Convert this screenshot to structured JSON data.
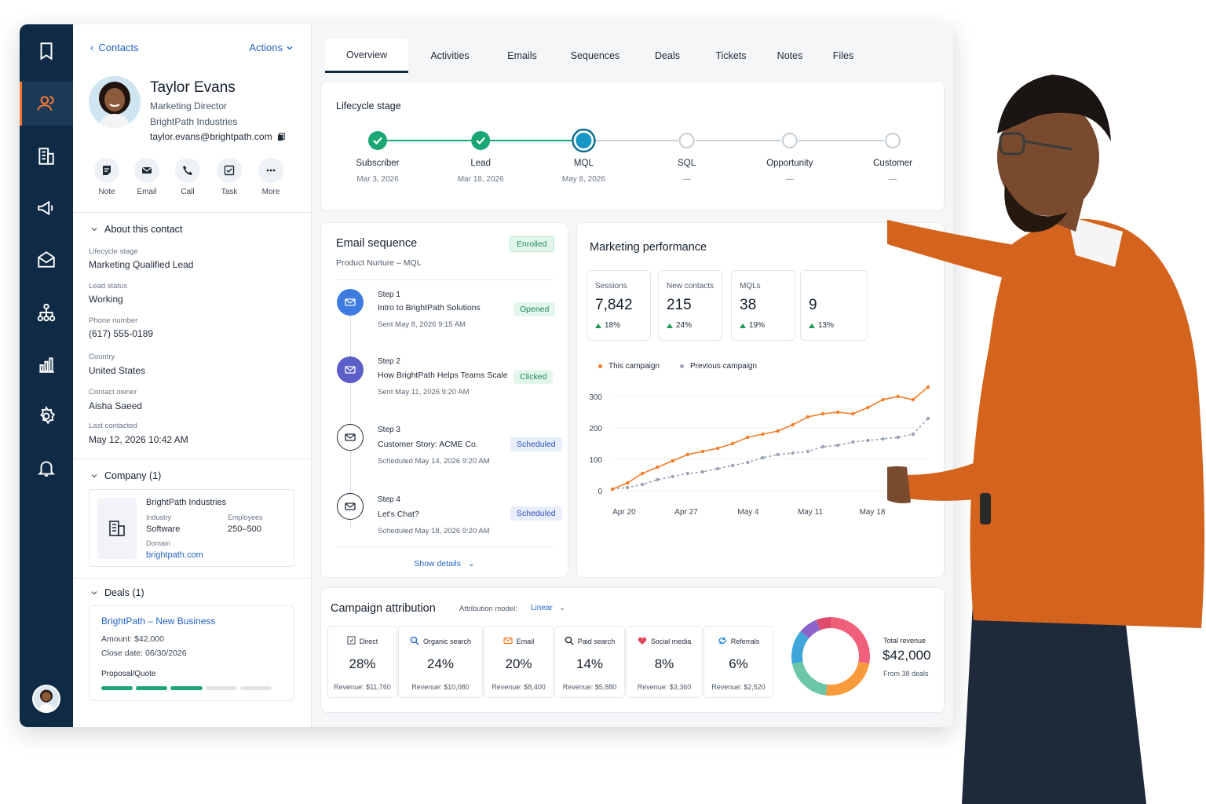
{
  "contact_panel": {
    "back_label": "Contacts",
    "actions_label": "Actions",
    "name": "Taylor Evans",
    "title": "Marketing Director",
    "company": "BrightPath Industries",
    "email": "taylor.evans@brightpath.com",
    "quick_actions": [
      {
        "label": "Note",
        "icon": "note-icon"
      },
      {
        "label": "Email",
        "icon": "email-icon"
      },
      {
        "label": "Call",
        "icon": "phone-icon"
      },
      {
        "label": "Task",
        "icon": "task-icon"
      },
      {
        "label": "More",
        "icon": "more-icon"
      }
    ],
    "about_title": "About this contact",
    "properties": [
      {
        "label": "Lifecycle stage",
        "value": "Marketing Qualified Lead"
      },
      {
        "label": "Lead status",
        "value": "Working"
      },
      {
        "label": "Phone number",
        "value": "(617) 555-0189"
      },
      {
        "label": "Country",
        "value": "United States"
      },
      {
        "label": "Contact owner",
        "value": "Aisha Saeed"
      },
      {
        "label": "Last contacted",
        "value": "May 12, 2026 10:42 AM"
      }
    ],
    "company_section": {
      "title": "Company (1)",
      "name": "BrightPath Industries",
      "industry_label": "Industry",
      "industry": "Software",
      "employees_label": "Employees",
      "employees": "250–500",
      "domain_label": "Domain",
      "domain": "brightpath.com"
    },
    "deals_section": {
      "title": "Deals (1)",
      "deal_name": "BrightPath – New Business",
      "amount": "Amount: $42,000",
      "close_date": "Close date: 06/30/2026",
      "stage": "Proposal/Quote",
      "stage_progress_segments_done": 3,
      "stage_progress_segments_total": 5
    }
  },
  "tabs": [
    "Overview",
    "Activities",
    "Emails",
    "Sequences",
    "Deals",
    "Tickets",
    "Notes",
    "Files"
  ],
  "lifecycle": {
    "title": "Lifecycle stage",
    "stages": [
      {
        "name": "Subscriber",
        "date": "Mar 3, 2026",
        "status": "done"
      },
      {
        "name": "Lead",
        "date": "Mar 18, 2026",
        "status": "done"
      },
      {
        "name": "MQL",
        "date": "May 8, 2026",
        "status": "current"
      },
      {
        "name": "SQL",
        "date": "—",
        "status": "todo"
      },
      {
        "name": "Opportunity",
        "date": "—",
        "status": "todo"
      },
      {
        "name": "Customer",
        "date": "—",
        "status": "todo"
      }
    ],
    "colors": {
      "done": "#1aa774",
      "current": "#1596c4",
      "todo": "#c6ced6"
    }
  },
  "email_sequence": {
    "title": "Email sequence",
    "badge": "Enrolled",
    "subtitle": "Product Nurture – MQL",
    "steps": [
      {
        "step": "Step 1",
        "title": "Intro to BrightPath Solutions",
        "date": "Sent May 8, 2026 9:15 AM",
        "status": "Opened"
      },
      {
        "step": "Step 2",
        "title": "How BrightPath Helps Teams Scale",
        "date": "Sent May 11, 2026 9:20 AM",
        "status": "Clicked"
      },
      {
        "step": "Step 3",
        "title": "Customer Story: ACME Co.",
        "date": "Scheduled May 14, 2026 9:20 AM",
        "status": "Scheduled"
      },
      {
        "step": "Step 4",
        "title": "Let's Chat?",
        "date": "Scheduled May 18, 2026 9:20 AM",
        "status": "Scheduled"
      }
    ],
    "show_details": "Show details"
  },
  "marketing_performance": {
    "title": "Marketing performance",
    "stats": [
      {
        "label": "Sessions",
        "value": "7,842",
        "delta": "18%"
      },
      {
        "label": "New contacts",
        "value": "215",
        "delta": "24%"
      },
      {
        "label": "MQLs",
        "value": "38",
        "delta": "19%"
      },
      {
        "label": "",
        "value": "9",
        "delta": "13%"
      }
    ]
  },
  "chart_data": {
    "type": "line",
    "title": "",
    "xlabel": "",
    "ylabel": "",
    "x_tick_labels": [
      "Apr 20",
      "Apr 27",
      "May 4",
      "May 11",
      "May 18"
    ],
    "y_ticks": [
      0,
      100,
      200,
      300
    ],
    "ylim": [
      0,
      330
    ],
    "legend_position": "top-left",
    "grid": "horizontal",
    "series": [
      {
        "name": "This campaign",
        "color": "#f47d2a",
        "marker": "dot",
        "dash": false,
        "values": [
          5,
          25,
          55,
          75,
          95,
          115,
          125,
          135,
          150,
          170,
          180,
          190,
          210,
          235,
          245,
          250,
          245,
          265,
          290,
          300,
          290,
          330
        ]
      },
      {
        "name": "Previous campaign",
        "color": "#9aa3b5",
        "marker": "dot",
        "dash": true,
        "values": [
          5,
          10,
          20,
          35,
          45,
          55,
          60,
          70,
          80,
          90,
          105,
          115,
          120,
          125,
          140,
          145,
          155,
          160,
          165,
          170,
          180,
          230
        ]
      }
    ]
  },
  "campaign_attribution": {
    "title": "Campaign attribution",
    "model_label": "Attribution model:",
    "model_value": "Linear",
    "channels": [
      {
        "name": "Direct",
        "percent": "28%",
        "revenue": "Revenue: $11,760",
        "icon": "direct-icon",
        "color": "#4d5a68"
      },
      {
        "name": "Organic search",
        "percent": "24%",
        "revenue": "Revenue: $10,080",
        "icon": "search-icon",
        "color": "#2364c7"
      },
      {
        "name": "Email",
        "percent": "20%",
        "revenue": "Revenue: $8,400",
        "icon": "email-icon",
        "color": "#f47d2a"
      },
      {
        "name": "Paid search",
        "percent": "14%",
        "revenue": "Revenue: $5,880",
        "icon": "search-icon",
        "color": "#1f2a37"
      },
      {
        "name": "Social media",
        "percent": "8%",
        "revenue": "Revenue: $3,360",
        "icon": "social-icon",
        "color": "#e2475b"
      },
      {
        "name": "Referrals",
        "percent": "6%",
        "revenue": "Revenue: $2,520",
        "icon": "referral-icon",
        "color": "#2c8fd6"
      }
    ],
    "donut": [
      {
        "name": "Direct",
        "value": 28,
        "color": "#f0607a"
      },
      {
        "name": "Organic search",
        "value": 24,
        "color": "#f79b3c"
      },
      {
        "name": "Email",
        "value": 20,
        "color": "#6cc7a8"
      },
      {
        "name": "Paid search",
        "value": 14,
        "color": "#3fa6d9"
      },
      {
        "name": "Social media",
        "value": 8,
        "color": "#8b62c9"
      },
      {
        "name": "Referrals",
        "value": 6,
        "color": "#e04a6b"
      }
    ],
    "total_label": "Total revenue",
    "total_value": "$42,000",
    "total_sub": "From 38 deals"
  }
}
